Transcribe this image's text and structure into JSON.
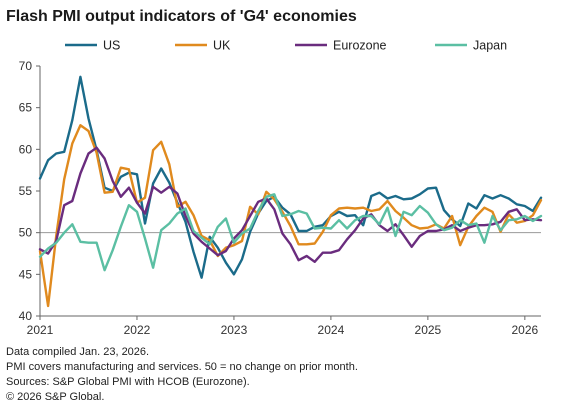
{
  "title": "Flash PMI output indicators of 'G4' economies",
  "notes": [
    "Data compiled Jan. 23, 2026.",
    "PMI covers manufacturing and services. 50 = no change on prior month.",
    "Sources: S&P Global PMI with HCOB (Eurozone).",
    "© 2026 S&P Global."
  ],
  "chart_data": {
    "type": "line",
    "title": "Flash PMI output indicators of 'G4' economies",
    "xlabel": "",
    "ylabel": "",
    "x_ticks": [
      "2021",
      "2022",
      "2023",
      "2024",
      "2025",
      "2026"
    ],
    "y_ticks": [
      40,
      45,
      50,
      55,
      60,
      65,
      70
    ],
    "ylim": [
      40,
      70
    ],
    "x_range": [
      "2021-01",
      "2026-01"
    ],
    "reference_line": 50,
    "legend_position": "top",
    "series": [
      {
        "name": "US",
        "color": "#1b6b8a",
        "values": [
          56.5,
          58.7,
          59.5,
          59.7,
          63.5,
          68.7,
          63.7,
          59.9,
          55.4,
          55.0,
          56.7,
          57.2,
          57.0,
          51.1,
          55.9,
          57.7,
          56.0,
          53.6,
          51.3,
          47.7,
          44.6,
          49.5,
          48.2,
          46.4,
          45.0,
          46.8,
          50.1,
          52.3,
          53.8,
          54.3,
          53.0,
          52.2,
          50.2,
          50.2,
          50.7,
          50.9,
          52.0,
          52.5,
          52.0,
          52.1,
          50.9,
          54.4,
          54.8,
          54.1,
          54.4,
          54.0,
          54.1,
          54.6,
          55.3,
          55.4,
          52.7,
          51.6,
          50.8,
          53.5,
          52.9,
          54.5,
          54.1,
          54.5,
          54.1,
          53.4,
          53.2,
          52.6,
          54.2
        ],
        "gap_note": ""
      },
      {
        "name": "UK",
        "color": "#e08a1e",
        "values": [
          47.8,
          41.2,
          49.6,
          56.4,
          60.7,
          62.9,
          62.2,
          59.6,
          54.8,
          54.9,
          57.8,
          57.6,
          53.6,
          54.2,
          59.9,
          60.9,
          58.2,
          53.1,
          53.7,
          52.1,
          49.6,
          49.1,
          47.2,
          48.2,
          48.5,
          49.0,
          53.1,
          52.2,
          54.9,
          54.0,
          52.5,
          50.8,
          48.6,
          48.6,
          48.7,
          50.1,
          52.1,
          52.9,
          53.0,
          52.9,
          53.0,
          52.6,
          52.8,
          53.8,
          52.6,
          51.8,
          50.9,
          50.5,
          50.6,
          51.0,
          50.5,
          52.0,
          48.5,
          50.7,
          52.0,
          53.0,
          52.5,
          50.1,
          52.2,
          51.2,
          51.4,
          52.1,
          53.9
        ]
      },
      {
        "name": "Eurozone",
        "color": "#6a2c7e",
        "values": [
          48.0,
          47.5,
          49.0,
          53.3,
          53.8,
          57.1,
          59.5,
          60.2,
          58.9,
          56.2,
          54.3,
          55.4,
          53.6,
          52.3,
          55.5,
          54.8,
          55.5,
          54.7,
          52.0,
          49.9,
          48.9,
          48.1,
          47.3,
          47.8,
          49.3,
          50.3,
          52.0,
          53.7,
          54.1,
          52.8,
          49.9,
          48.6,
          46.7,
          47.2,
          46.5,
          47.6,
          47.6,
          47.9,
          49.2,
          50.3,
          51.7,
          52.2,
          50.9,
          50.2,
          51.0,
          49.7,
          48.3,
          49.6,
          50.2,
          50.2,
          50.4,
          50.9,
          50.2,
          50.6,
          50.9,
          50.9,
          51.0,
          51.3,
          52.5,
          52.8,
          51.5,
          51.6,
          51.5
        ]
      },
      {
        "name": "Japan",
        "color": "#5bbfa3",
        "values": [
          47.1,
          48.1,
          48.8,
          50.0,
          51.0,
          48.9,
          48.8,
          48.8,
          45.5,
          47.9,
          50.7,
          53.3,
          52.5,
          49.3,
          45.8,
          50.3,
          51.1,
          52.3,
          52.9,
          50.2,
          49.4,
          48.6,
          50.7,
          51.7,
          48.8,
          49.9,
          50.5,
          52.6,
          54.3,
          54.6,
          52.0,
          52.2,
          52.6,
          52.3,
          50.5,
          50.6,
          50.5,
          51.5,
          50.5,
          51.5,
          52.0,
          52.0,
          51.0,
          53.0,
          49.6,
          52.5,
          52.1,
          53.2,
          52.4,
          51.0,
          50.3,
          50.6,
          51.5,
          50.9,
          51.1,
          48.8,
          52.0,
          50.3,
          51.5,
          51.6,
          52.0,
          51.4,
          52.0
        ]
      }
    ]
  }
}
